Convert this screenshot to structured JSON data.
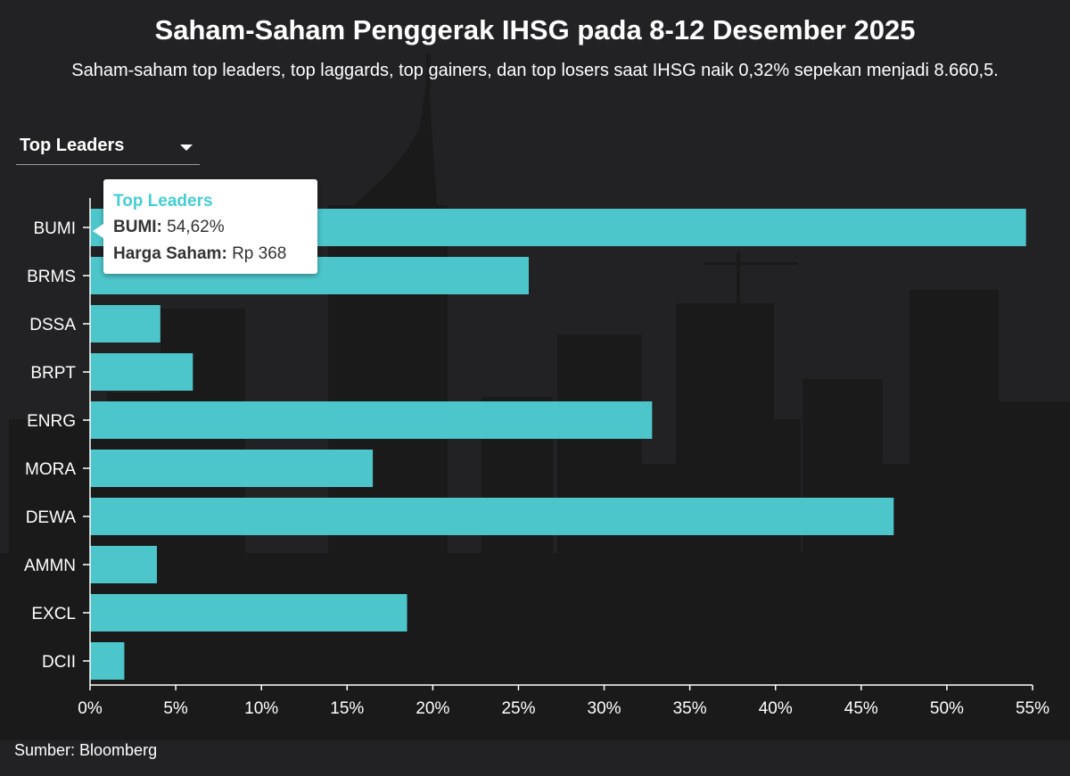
{
  "header": {
    "title": "Saham-Saham Penggerak IHSG pada 8-12 Desember 2025",
    "subtitle": "Saham-saham top leaders, top laggards, top gainers, dan top losers saat IHSG naik 0,32% sepekan menjadi 8.660,5."
  },
  "dropdown": {
    "selected": "Top Leaders"
  },
  "tooltip": {
    "title": "Top Leaders",
    "row1_label": "BUMI:",
    "row1_value": "54,62%",
    "row2_label": "Harga Saham:",
    "row2_value": "Rp 368"
  },
  "footer": {
    "source": "Sumber: Bloomberg"
  },
  "colors": {
    "bar": "#4fd0d4",
    "background": "#222224",
    "tooltip_title": "#45cfd3"
  },
  "chart_data": {
    "type": "bar",
    "orientation": "horizontal",
    "categories": [
      "BUMI",
      "BRMS",
      "DSSA",
      "BRPT",
      "ENRG",
      "MORA",
      "DEWA",
      "AMMN",
      "EXCL",
      "DCII"
    ],
    "values": [
      54.62,
      25.6,
      4.1,
      6.0,
      32.8,
      16.5,
      46.9,
      3.9,
      18.5,
      2.0
    ],
    "xlim": [
      0,
      55
    ],
    "xticks": [
      0,
      5,
      10,
      15,
      20,
      25,
      30,
      35,
      40,
      45,
      50,
      55
    ],
    "xtick_labels": [
      "0%",
      "5%",
      "10%",
      "15%",
      "20%",
      "25%",
      "30%",
      "35%",
      "40%",
      "45%",
      "50%",
      "55%"
    ],
    "xlabel": "",
    "ylabel": "",
    "grid": false
  }
}
